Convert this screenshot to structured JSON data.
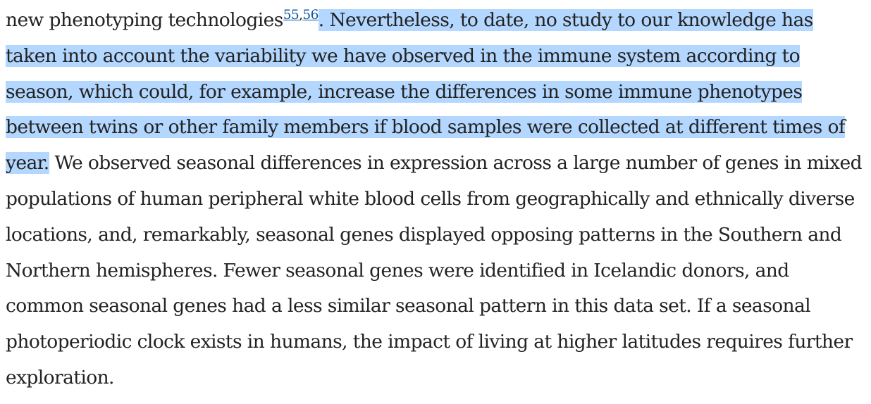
{
  "paragraph": {
    "before_citation": "new phenotyping technologies",
    "citations": [
      "55",
      "56"
    ],
    "citation_separator": ",",
    "selected_text": ". Nevertheless, to date, no study to our knowledge has taken into account the variability we have observed in the immune system according to season, which could, for example, increase the differences in some immune phenotypes between twins or other family members if blood samples were collected at different times of year.",
    "after_selection": " We observed seasonal differences in expression across a large number of genes in mixed populations of human peripheral white blood cells from geographically and ethnically diverse locations, and, remarkably, seasonal genes displayed opposing patterns in the Southern and Northern hemispheres. Fewer seasonal genes were identified in Icelandic donors, and common seasonal genes had a less similar seasonal pattern in this data set. If a seasonal photoperiodic clock exists in humans, the impact of living at higher latitudes requires further exploration."
  },
  "colors": {
    "text": "#222222",
    "link": "#0a55a6",
    "selection_highlight": "#b3d7fe"
  }
}
